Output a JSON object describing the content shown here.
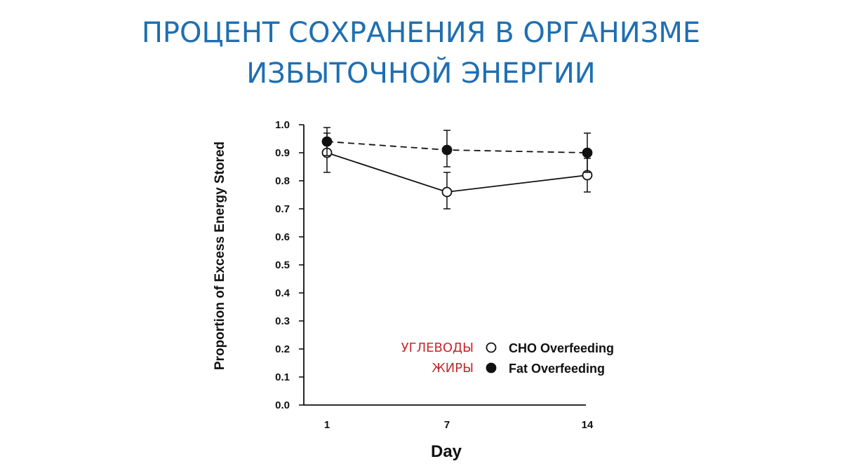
{
  "slide": {
    "title_line1": "ПРОЦЕНТ СОХРАНЕНИЯ В ОРГАНИЗМЕ",
    "title_line2": "ИЗБЫТОЧНОЙ ЭНЕРГИИ",
    "title_color": "#1f6fb2",
    "annotation_color": "#c8282d"
  },
  "chart_data": {
    "type": "line",
    "title": "",
    "xlabel": "Day",
    "ylabel": "Proportion of Excess Energy Stored",
    "categories": [
      "1",
      "7",
      "14"
    ],
    "ylim": [
      0.0,
      1.0
    ],
    "yticks": [
      "0.0",
      "0.1",
      "0.2",
      "0.3",
      "0.4",
      "0.5",
      "0.6",
      "0.7",
      "0.8",
      "0.9",
      "1.0"
    ],
    "legend_position": "bottom-right",
    "series": [
      {
        "name": "CHO Overfeeding",
        "label_ru": "УГЛЕВОДЫ",
        "marker": "open-circle",
        "line": "solid",
        "values": [
          0.9,
          0.76,
          0.82
        ],
        "err_low": [
          0.83,
          0.7,
          0.76
        ],
        "err_high": [
          0.97,
          0.83,
          0.88
        ]
      },
      {
        "name": "Fat Overfeeding",
        "label_ru": "ЖИРЫ",
        "marker": "filled-circle",
        "line": "dashed",
        "values": [
          0.94,
          0.91,
          0.9
        ],
        "err_low": [
          0.89,
          0.85,
          0.83
        ],
        "err_high": [
          0.99,
          0.98,
          0.97
        ]
      }
    ]
  }
}
